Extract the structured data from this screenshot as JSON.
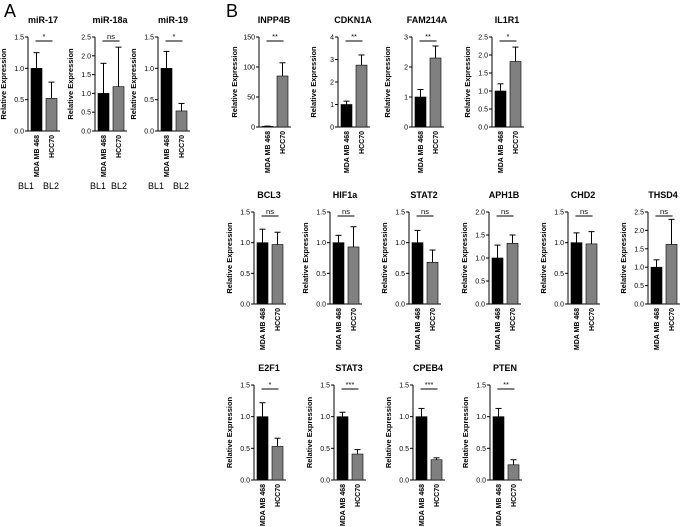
{
  "panel_labels": [
    "A",
    "B"
  ],
  "bar_colors": [
    "#000000",
    "#808080"
  ],
  "categories": [
    "MDA MB 468",
    "HCC70"
  ],
  "y_axis_label": "Relative Expression",
  "extra_labels": [
    "BL1",
    "BL2"
  ],
  "chart_data": [
    {
      "type": "bar",
      "panel": "A",
      "title": "miR-17",
      "categories": [
        "MDA MB 468",
        "HCC70"
      ],
      "values": [
        1.0,
        0.52
      ],
      "errors": [
        0.25,
        0.26
      ],
      "ylim": [
        0,
        1.5
      ],
      "yticks": [
        "0.0",
        "0.5",
        "1.0",
        "1.5"
      ],
      "significance": "*",
      "ylabel": "Relative Expression"
    },
    {
      "type": "bar",
      "panel": "A",
      "title": "miR-18a",
      "categories": [
        "MDA MB 468",
        "HCC70"
      ],
      "values": [
        1.0,
        1.18
      ],
      "errors": [
        0.8,
        1.05
      ],
      "ylim": [
        0,
        2.5
      ],
      "yticks": [
        "0.0",
        "0.5",
        "1.0",
        "1.5",
        "2.0",
        "2.5"
      ],
      "significance": "ns",
      "ylabel": "Relative Expression"
    },
    {
      "type": "bar",
      "panel": "A",
      "title": "miR-19",
      "categories": [
        "MDA MB 468",
        "HCC70"
      ],
      "values": [
        1.0,
        0.32
      ],
      "errors": [
        0.27,
        0.12
      ],
      "ylim": [
        0,
        1.5
      ],
      "yticks": [
        "0.0",
        "0.5",
        "1.0",
        "1.5"
      ],
      "significance": "*",
      "ylabel": "Relative Expression"
    },
    {
      "type": "bar",
      "panel": "B",
      "title": "INPP4B",
      "categories": [
        "MDA MB 468",
        "HCC70"
      ],
      "values": [
        1.0,
        85
      ],
      "errors": [
        0.5,
        22
      ],
      "ylim": [
        0,
        150
      ],
      "yticks": [
        "0",
        "50",
        "100",
        "150"
      ],
      "significance": "**",
      "ylabel": "Relative Expression"
    },
    {
      "type": "bar",
      "panel": "B",
      "title": "CDKN1A",
      "categories": [
        "MDA MB 468",
        "HCC70"
      ],
      "values": [
        1.0,
        2.75
      ],
      "errors": [
        0.15,
        0.45
      ],
      "ylim": [
        0,
        4
      ],
      "yticks": [
        "0",
        "1",
        "2",
        "3",
        "4"
      ],
      "significance": "**",
      "ylabel": "Relative Expression"
    },
    {
      "type": "bar",
      "panel": "B",
      "title": "FAM214A",
      "categories": [
        "MDA MB 468",
        "HCC70"
      ],
      "values": [
        1.0,
        2.3
      ],
      "errors": [
        0.25,
        0.4
      ],
      "ylim": [
        0,
        3
      ],
      "yticks": [
        "0",
        "1",
        "2",
        "3"
      ],
      "significance": "**",
      "ylabel": "Relative Expression"
    },
    {
      "type": "bar",
      "panel": "B",
      "title": "IL1R1",
      "categories": [
        "MDA MB 468",
        "HCC70"
      ],
      "values": [
        1.0,
        1.82
      ],
      "errors": [
        0.2,
        0.4
      ],
      "ylim": [
        0,
        2.5
      ],
      "yticks": [
        "0.0",
        "0.5",
        "1.0",
        "1.5",
        "2.0",
        "2.5"
      ],
      "significance": "*",
      "ylabel": "Relative Expression"
    },
    {
      "type": "bar",
      "panel": "B",
      "title": "BCL3",
      "categories": [
        "MDA MB 468",
        "HCC70"
      ],
      "values": [
        1.0,
        0.97
      ],
      "errors": [
        0.22,
        0.2
      ],
      "ylim": [
        0,
        1.5
      ],
      "yticks": [
        "0.0",
        "0.5",
        "1.0",
        "1.5"
      ],
      "significance": "ns",
      "ylabel": "Relative Expression"
    },
    {
      "type": "bar",
      "panel": "B",
      "title": "HIF1a",
      "categories": [
        "MDA MB 468",
        "HCC70"
      ],
      "values": [
        1.0,
        0.93
      ],
      "errors": [
        0.12,
        0.33
      ],
      "ylim": [
        0,
        1.5
      ],
      "yticks": [
        "0.0",
        "0.5",
        "1.0",
        "1.5"
      ],
      "significance": "ns",
      "ylabel": "Relative Expression"
    },
    {
      "type": "bar",
      "panel": "B",
      "title": "STAT2",
      "categories": [
        "MDA MB 468",
        "HCC70"
      ],
      "values": [
        1.0,
        0.68
      ],
      "errors": [
        0.2,
        0.2
      ],
      "ylim": [
        0,
        1.5
      ],
      "yticks": [
        "0.0",
        "0.5",
        "1.0",
        "1.5"
      ],
      "significance": "ns",
      "ylabel": "Relative Expression"
    },
    {
      "type": "bar",
      "panel": "B",
      "title": "APH1B",
      "categories": [
        "MDA MB 468",
        "HCC70"
      ],
      "values": [
        1.0,
        1.32
      ],
      "errors": [
        0.28,
        0.18
      ],
      "ylim": [
        0,
        2.0
      ],
      "yticks": [
        "0.0",
        "0.5",
        "1.0",
        "1.5",
        "2.0"
      ],
      "significance": "ns",
      "ylabel": "Relative Expression"
    },
    {
      "type": "bar",
      "panel": "B",
      "title": "CHD2",
      "categories": [
        "MDA MB 468",
        "HCC70"
      ],
      "values": [
        1.0,
        0.98
      ],
      "errors": [
        0.16,
        0.2
      ],
      "ylim": [
        0,
        1.5
      ],
      "yticks": [
        "0.0",
        "0.5",
        "1.0",
        "1.5"
      ],
      "significance": "ns",
      "ylabel": "Relative Expression"
    },
    {
      "type": "bar",
      "panel": "B",
      "title": "THSD4",
      "categories": [
        "MDA MB 468",
        "HCC70"
      ],
      "values": [
        1.0,
        1.62
      ],
      "errors": [
        0.2,
        0.68
      ],
      "ylim": [
        0,
        2.5
      ],
      "yticks": [
        "0.0",
        "0.5",
        "1.0",
        "1.5",
        "2.0",
        "2.5"
      ],
      "significance": "ns",
      "ylabel": "Relative Expression"
    },
    {
      "type": "bar",
      "panel": "B",
      "title": "E2F1",
      "categories": [
        "MDA MB 468",
        "HCC70"
      ],
      "values": [
        1.0,
        0.53
      ],
      "errors": [
        0.22,
        0.13
      ],
      "ylim": [
        0,
        1.5
      ],
      "yticks": [
        "0.0",
        "0.5",
        "1.0",
        "1.5"
      ],
      "significance": "*",
      "ylabel": "Relative Expression"
    },
    {
      "type": "bar",
      "panel": "B",
      "title": "STAT3",
      "categories": [
        "MDA MB 468",
        "HCC70"
      ],
      "values": [
        1.0,
        0.41
      ],
      "errors": [
        0.07,
        0.07
      ],
      "ylim": [
        0,
        1.5
      ],
      "yticks": [
        "0.0",
        "0.5",
        "1.0",
        "1.5"
      ],
      "significance": "***",
      "ylabel": "Relative Expression"
    },
    {
      "type": "bar",
      "panel": "B",
      "title": "CPEB4",
      "categories": [
        "MDA MB 468",
        "HCC70"
      ],
      "values": [
        1.0,
        0.32
      ],
      "errors": [
        0.13,
        0.03
      ],
      "ylim": [
        0,
        1.5
      ],
      "yticks": [
        "0.0",
        "0.5",
        "1.0",
        "1.5"
      ],
      "significance": "***",
      "ylabel": "Relative Expression"
    },
    {
      "type": "bar",
      "panel": "B",
      "title": "PTEN",
      "categories": [
        "MDA MB 468",
        "HCC70"
      ],
      "values": [
        1.0,
        0.24
      ],
      "errors": [
        0.13,
        0.08
      ],
      "ylim": [
        0,
        1.5
      ],
      "yticks": [
        "0.0",
        "0.5",
        "1.0",
        "1.5"
      ],
      "significance": "**",
      "ylabel": "Relative Expression"
    }
  ]
}
